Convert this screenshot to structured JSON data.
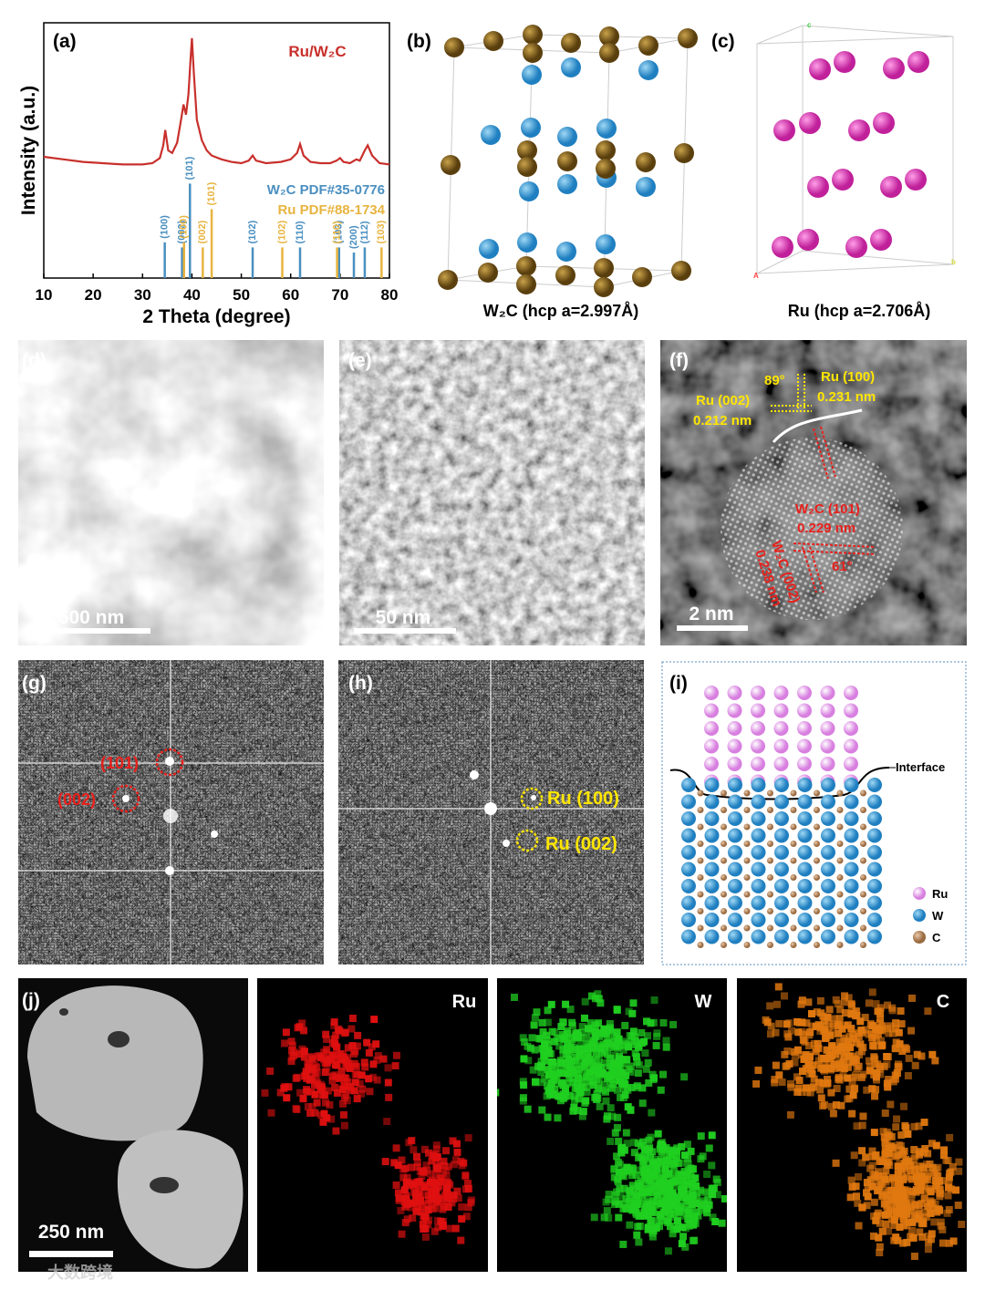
{
  "panel_labels": [
    "(a)",
    "(b)",
    "(c)",
    "(d)",
    "(e)",
    "(f)",
    "(g)",
    "(h)",
    "(i)",
    "(j)"
  ],
  "chart_data": {
    "type": "line",
    "x_label": "2 Theta (degree)",
    "y_label": "Intensity (a.u.)",
    "xlim": [
      10,
      80
    ],
    "xticks": [
      10,
      20,
      30,
      40,
      50,
      60,
      70,
      80
    ],
    "ylim": [
      0,
      100
    ],
    "x": [
      10,
      14,
      18,
      22,
      26,
      30,
      32,
      33.5,
      34.2,
      34.6,
      35.2,
      36,
      37,
      37.8,
      38.3,
      38.8,
      39.3,
      39.7,
      40,
      40.4,
      41,
      42,
      43,
      44,
      46,
      48,
      50,
      51.5,
      52.3,
      53,
      55,
      58,
      60,
      61.3,
      61.9,
      62.6,
      64,
      66,
      68,
      69.3,
      70,
      70.7,
      72,
      73.3,
      74,
      75,
      75.6,
      76.5,
      78,
      80
    ],
    "series": [
      {
        "name": "Ru/W₂C",
        "color": "#c8302c",
        "values": [
          47.5,
          46.5,
          45.5,
          45,
          44.5,
          44.5,
          45,
          47,
          52,
          58,
          50,
          49,
          53,
          62,
          68,
          64,
          72,
          85,
          94,
          80,
          62,
          54,
          50,
          48,
          46.5,
          45.5,
          45,
          46,
          48,
          46,
          45,
          45.5,
          46.5,
          49,
          52.5,
          48,
          45.5,
          45,
          45,
          46,
          47,
          45.5,
          45,
          46.5,
          46,
          50,
          52,
          48,
          45,
          44.5
        ]
      }
    ],
    "reference_patterns": [
      {
        "name": "W₂C PDF#35-0776",
        "color": "#4a8fc0",
        "positions": [
          34.5,
          38.0,
          39.6,
          52.3,
          61.9,
          69.8,
          72.8,
          75.0
        ],
        "labels": [
          "(100)",
          "(002)",
          "(101)",
          "(102)",
          "(110)",
          "(103)",
          "(200)",
          "(112)"
        ],
        "intensities": [
          14,
          12,
          37,
          12,
          12,
          12,
          10,
          12
        ]
      },
      {
        "name": "Ru PDF#88-1734",
        "color": "#e8b440",
        "positions": [
          38.4,
          42.2,
          44.0,
          58.3,
          69.4,
          78.4
        ],
        "labels": [
          "(100)",
          "(002)",
          "(101)",
          "(102)",
          "(110)",
          "(103)"
        ],
        "intensities": [
          14,
          12,
          27,
          12,
          12,
          12
        ]
      }
    ]
  },
  "panel_b": {
    "caption": "W₂C (hcp a=2.997Å)"
  },
  "panel_c": {
    "caption": "Ru (hcp a=2.706Å)",
    "axis_labels": [
      "c",
      "A",
      "b"
    ]
  },
  "panel_d": {
    "scale_bar": "500 nm"
  },
  "panel_e": {
    "scale_bar": "50 nm"
  },
  "panel_f": {
    "scale_bar": "2 nm",
    "annotations": [
      "89°",
      "Ru (100)",
      "0.231 nm",
      "Ru (002)",
      "0.212 nm",
      "W₂C (101)",
      "0.229 nm",
      "W₂C (002)",
      "0.238 nm",
      "61°"
    ]
  },
  "panel_g": {
    "annotations": [
      "(101)",
      "(002)"
    ]
  },
  "panel_h": {
    "annotations": [
      "Ru (100)",
      "Ru (002)"
    ]
  },
  "panel_i": {
    "interface": "Interface",
    "legend": [
      "Ru",
      "W",
      "C"
    ]
  },
  "panel_j": {
    "scale_bar": "250 nm",
    "maps": [
      "Ru",
      "W",
      "C"
    ]
  },
  "watermark": "大数跨境"
}
